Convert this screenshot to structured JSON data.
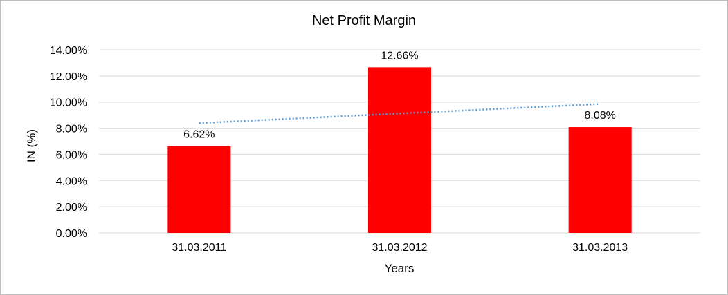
{
  "chart_data": {
    "type": "bar",
    "title": "Net Profit Margin",
    "xlabel": "Years",
    "ylabel": "IN (%)",
    "categories": [
      "31.03.2011",
      "31.03.2012",
      "31.03.2013"
    ],
    "values": [
      6.62,
      12.66,
      8.08
    ],
    "data_labels": [
      "6.62%",
      "12.66%",
      "8.08%"
    ],
    "ylim": [
      0,
      14
    ],
    "y_ticks": [
      0,
      2,
      4,
      6,
      8,
      10,
      12,
      14
    ],
    "y_tick_labels": [
      "0.00%",
      "2.00%",
      "4.00%",
      "6.00%",
      "8.00%",
      "10.00%",
      "12.00%",
      "14.00%"
    ],
    "grid": true,
    "legend": "none",
    "trendline": {
      "type": "linear",
      "style": "dotted",
      "color": "#5b9bd5"
    },
    "bar_color": "#ff0000",
    "gridline_color": "#d9d9d9"
  }
}
